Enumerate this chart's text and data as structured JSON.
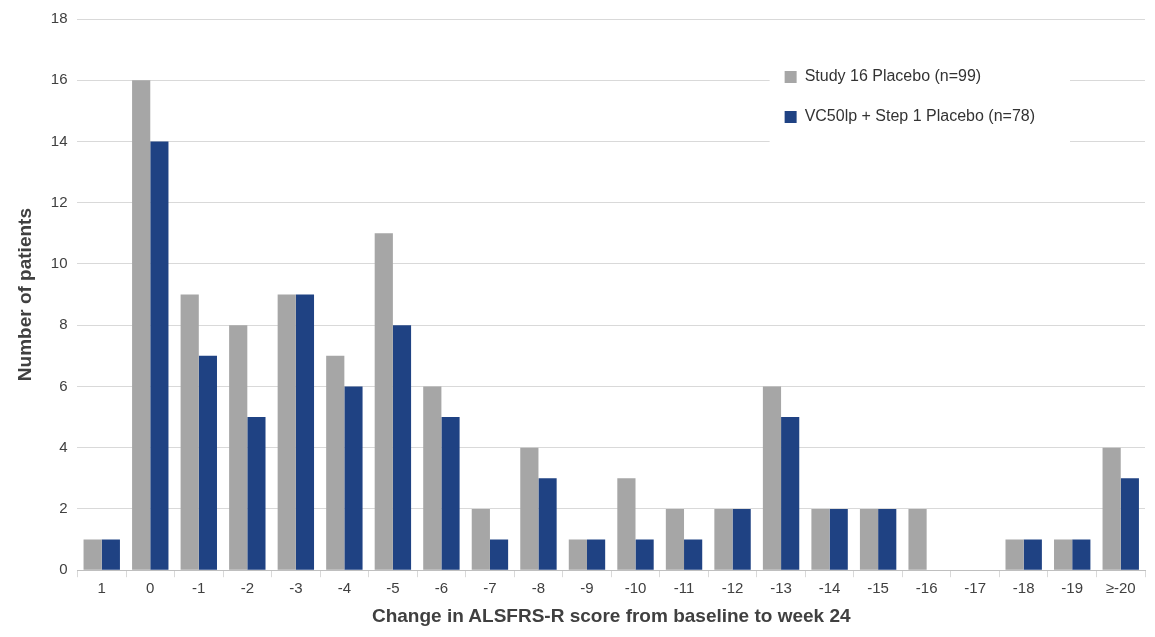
{
  "chart_data": {
    "type": "bar",
    "xlabel": "Change in ALSFRS-R score from baseline to week 24",
    "ylabel": "Number of patients",
    "categories": [
      "1",
      "0",
      "-1",
      "-2",
      "-3",
      "-4",
      "-5",
      "-6",
      "-7",
      "-8",
      "-9",
      "-10",
      "-11",
      "-12",
      "-13",
      "-14",
      "-15",
      "-16",
      "-17",
      "-18",
      "-19",
      "≥-20"
    ],
    "series": [
      {
        "name": "Study 16 Placebo (n=99)",
        "color": "#a6a6a6",
        "values": [
          1,
          16,
          9,
          8,
          9,
          7,
          11,
          6,
          2,
          4,
          1,
          3,
          2,
          2,
          6,
          2,
          2,
          2,
          0,
          1,
          1,
          4
        ]
      },
      {
        "name": "VC50lp + Step 1 Placebo (n=78)",
        "color": "#1f4283",
        "values": [
          1,
          14,
          7,
          5,
          9,
          6,
          8,
          5,
          1,
          3,
          1,
          1,
          1,
          2,
          5,
          2,
          2,
          0,
          0,
          1,
          1,
          3
        ]
      }
    ],
    "ylim": [
      0,
      18
    ],
    "yticks": [
      0,
      2,
      4,
      6,
      8,
      10,
      12,
      14,
      16,
      18
    ],
    "grid": "y",
    "legend": "top right"
  }
}
